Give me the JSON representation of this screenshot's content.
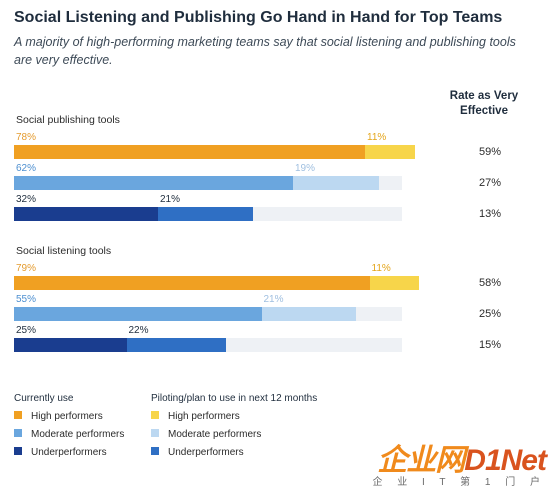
{
  "header": {
    "title": "Social Listening and Publishing Go Hand in Hand for Top Teams",
    "subtitle": "A majority of high-performing marketing teams say that social listening and publishing tools are very effective.",
    "rate_header": "Rate as Very Effective"
  },
  "chart_data": {
    "type": "bar",
    "stacked": true,
    "orientation": "horizontal",
    "xlim": [
      0,
      100
    ],
    "rate_column_title": "Rate as Very Effective",
    "groups": [
      {
        "label": "Social publishing tools",
        "rows": [
          {
            "tier": "High performers",
            "currently_use": 78,
            "piloting": 11,
            "rate_very_effective": "59%"
          },
          {
            "tier": "Moderate performers",
            "currently_use": 62,
            "piloting": 19,
            "rate_very_effective": "27%"
          },
          {
            "tier": "Underperformers",
            "currently_use": 32,
            "piloting": 21,
            "rate_very_effective": "13%"
          }
        ]
      },
      {
        "label": "Social listening tools",
        "rows": [
          {
            "tier": "High performers",
            "currently_use": 79,
            "piloting": 11,
            "rate_very_effective": "58%"
          },
          {
            "tier": "Moderate performers",
            "currently_use": 55,
            "piloting": 21,
            "rate_very_effective": "25%"
          },
          {
            "tier": "Underperformers",
            "currently_use": 25,
            "piloting": 22,
            "rate_very_effective": "15%"
          }
        ]
      }
    ],
    "colors": {
      "currently_use": {
        "High performers": "#f0a022",
        "Moderate performers": "#6aa6de",
        "Underperformers": "#1a3d8f"
      },
      "piloting": {
        "High performers": "#f7d54a",
        "Moderate performers": "#bcd8f1",
        "Underperformers": "#2f6fc4"
      },
      "track": "#eef1f5"
    },
    "label_colors": {
      "currently_use": {
        "High performers": "#e49b2e",
        "Moderate performers": "#4d8fd0",
        "Underperformers": "#1f2d3d"
      },
      "piloting": {
        "High performers": "#e4a51a",
        "Moderate performers": "#9fbfe0",
        "Underperformers": "#1f2d3d"
      }
    },
    "legend": {
      "columns": [
        {
          "title": "Currently use",
          "items": [
            "High performers",
            "Moderate performers",
            "Underperformers"
          ]
        },
        {
          "title": "Piloting/plan to use in next 12 months",
          "items": [
            "High performers",
            "Moderate performers",
            "Underperformers"
          ]
        }
      ]
    }
  },
  "watermark": {
    "main_a": "企业网",
    "main_b": "D1Net",
    "sub": "企 业 I T 第 1 门 户"
  }
}
